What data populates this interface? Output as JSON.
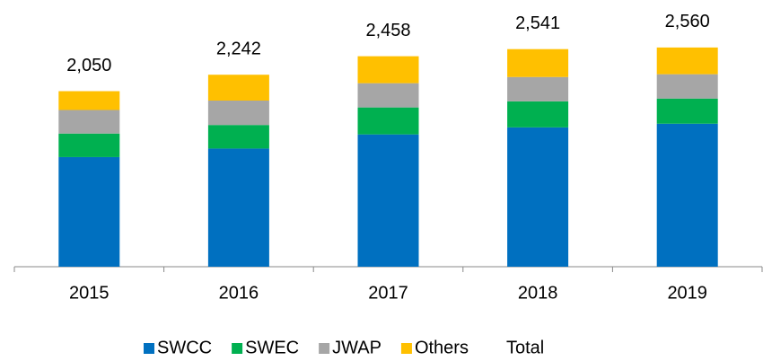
{
  "chart_data": {
    "type": "stacked_bar",
    "categories": [
      "2015",
      "2016",
      "2017",
      "2018",
      "2019"
    ],
    "series": [
      {
        "name": "SWCC",
        "color": "#0070c0",
        "values": [
          1280,
          1380,
          1545,
          1627,
          1670
        ]
      },
      {
        "name": "SWEC",
        "color": "#00b050",
        "values": [
          275,
          275,
          315,
          304,
          294
        ]
      },
      {
        "name": "JWAP",
        "color": "#a6a6a6",
        "values": [
          275,
          285,
          283,
          284,
          284
        ]
      },
      {
        "name": "Others",
        "color": "#ffc000",
        "values": [
          220,
          302,
          315,
          326,
          312
        ]
      },
      {
        "name": "Total",
        "values": [
          2050,
          2242,
          2458,
          2541,
          2560
        ],
        "value_labels": [
          "2,050",
          "2,242",
          "2,458",
          "2,541",
          "2,560"
        ]
      }
    ],
    "ylim": [
      0,
      2800
    ]
  }
}
